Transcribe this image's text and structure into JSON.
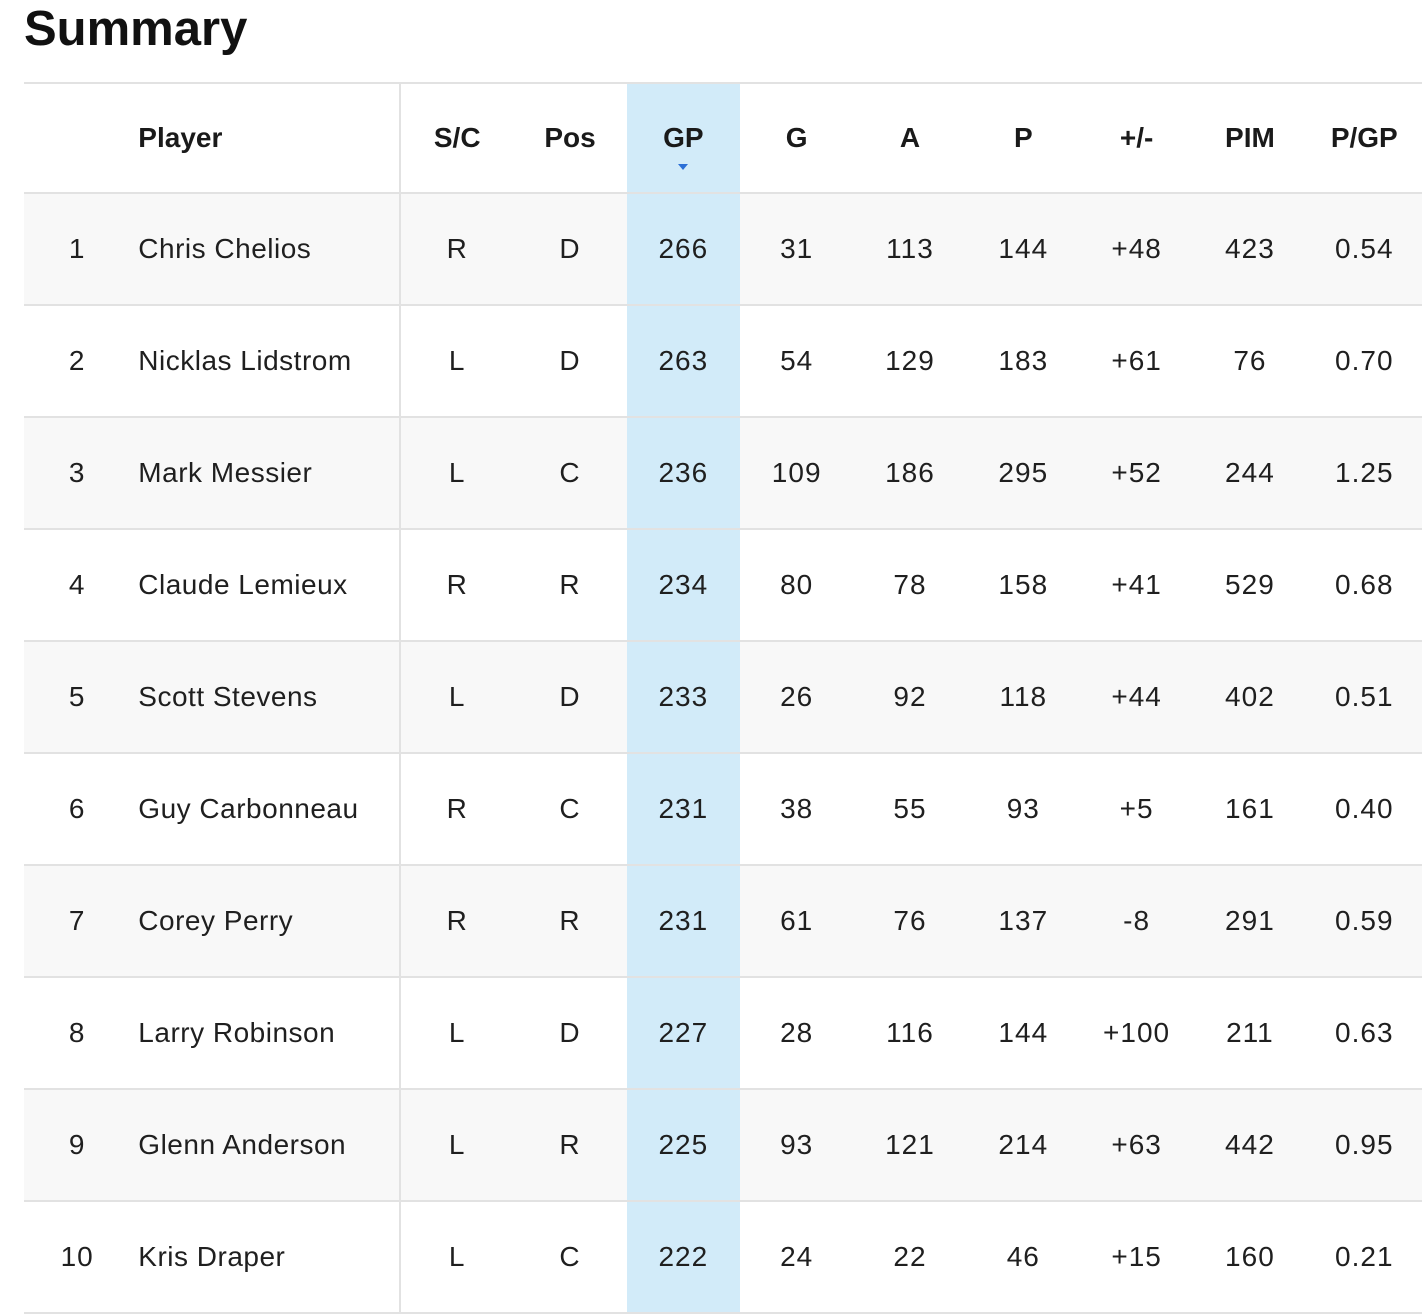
{
  "page": {
    "title": "Summary"
  },
  "table": {
    "columns": [
      {
        "key": "rank",
        "label": ""
      },
      {
        "key": "player",
        "label": "Player"
      },
      {
        "key": "sc",
        "label": "S/C"
      },
      {
        "key": "pos",
        "label": "Pos"
      },
      {
        "key": "gp",
        "label": "GP"
      },
      {
        "key": "g",
        "label": "G"
      },
      {
        "key": "a",
        "label": "A"
      },
      {
        "key": "p",
        "label": "P"
      },
      {
        "key": "pm",
        "label": "+/-"
      },
      {
        "key": "pim",
        "label": "PIM"
      },
      {
        "key": "pgp",
        "label": "P/GP"
      }
    ],
    "sorted_column": "GP",
    "sort_direction": "descending",
    "sort_icon": "caret-down-icon",
    "highlight_color": "#d2ebf9",
    "rows": [
      {
        "rank": "1",
        "player": "Chris Chelios",
        "sc": "R",
        "pos": "D",
        "gp": "266",
        "g": "31",
        "a": "113",
        "p": "144",
        "pm": "+48",
        "pim": "423",
        "pgp": "0.54"
      },
      {
        "rank": "2",
        "player": "Nicklas Lidstrom",
        "sc": "L",
        "pos": "D",
        "gp": "263",
        "g": "54",
        "a": "129",
        "p": "183",
        "pm": "+61",
        "pim": "76",
        "pgp": "0.70"
      },
      {
        "rank": "3",
        "player": "Mark Messier",
        "sc": "L",
        "pos": "C",
        "gp": "236",
        "g": "109",
        "a": "186",
        "p": "295",
        "pm": "+52",
        "pim": "244",
        "pgp": "1.25"
      },
      {
        "rank": "4",
        "player": "Claude Lemieux",
        "sc": "R",
        "pos": "R",
        "gp": "234",
        "g": "80",
        "a": "78",
        "p": "158",
        "pm": "+41",
        "pim": "529",
        "pgp": "0.68"
      },
      {
        "rank": "5",
        "player": "Scott Stevens",
        "sc": "L",
        "pos": "D",
        "gp": "233",
        "g": "26",
        "a": "92",
        "p": "118",
        "pm": "+44",
        "pim": "402",
        "pgp": "0.51"
      },
      {
        "rank": "6",
        "player": "Guy Carbonneau",
        "sc": "R",
        "pos": "C",
        "gp": "231",
        "g": "38",
        "a": "55",
        "p": "93",
        "pm": "+5",
        "pim": "161",
        "pgp": "0.40"
      },
      {
        "rank": "7",
        "player": "Corey Perry",
        "sc": "R",
        "pos": "R",
        "gp": "231",
        "g": "61",
        "a": "76",
        "p": "137",
        "pm": "-8",
        "pim": "291",
        "pgp": "0.59"
      },
      {
        "rank": "8",
        "player": "Larry Robinson",
        "sc": "L",
        "pos": "D",
        "gp": "227",
        "g": "28",
        "a": "116",
        "p": "144",
        "pm": "+100",
        "pim": "211",
        "pgp": "0.63"
      },
      {
        "rank": "9",
        "player": "Glenn Anderson",
        "sc": "L",
        "pos": "R",
        "gp": "225",
        "g": "93",
        "a": "121",
        "p": "214",
        "pm": "+63",
        "pim": "442",
        "pgp": "0.95"
      },
      {
        "rank": "10",
        "player": "Kris Draper",
        "sc": "L",
        "pos": "C",
        "gp": "222",
        "g": "24",
        "a": "22",
        "p": "46",
        "pm": "+15",
        "pim": "160",
        "pgp": "0.21"
      }
    ]
  }
}
